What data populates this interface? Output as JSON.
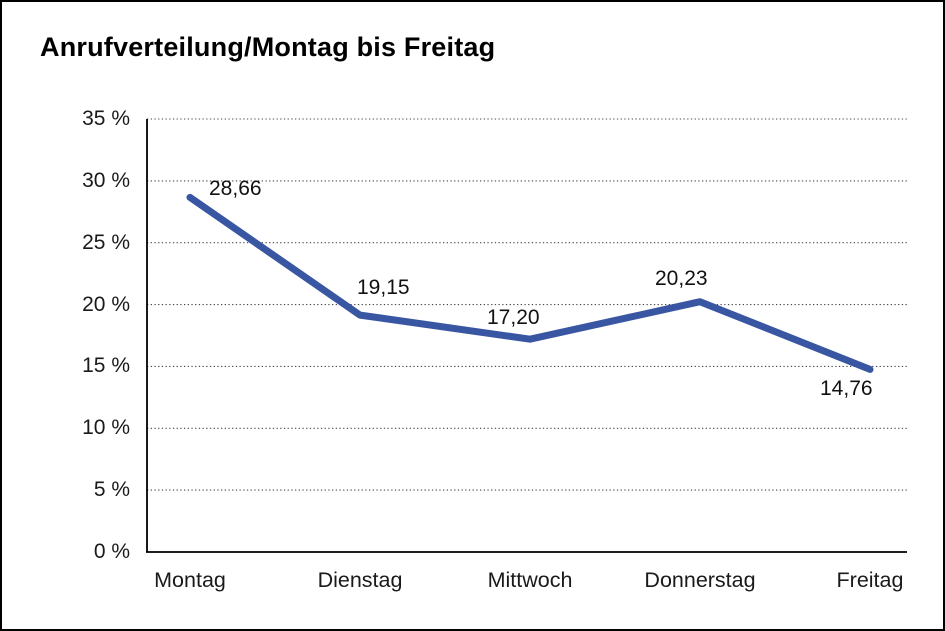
{
  "chart_data": {
    "type": "line",
    "title": "Anrufverteilung/Montag bis Freitag",
    "categories": [
      "Montag",
      "Dienstag",
      "Mittwoch",
      "Donnerstag",
      "Freitag"
    ],
    "series": [
      {
        "name": "Anrufverteilung",
        "values": [
          28.66,
          19.15,
          17.2,
          20.23,
          14.76
        ],
        "point_labels": [
          "28,66",
          "19,15",
          "17,20",
          "20,23",
          "14,76"
        ],
        "color": "#3956A2"
      }
    ],
    "ytick_labels": [
      "0 %",
      "5 %",
      "10 %",
      "15 %",
      "20 %",
      "25 %",
      "30 %",
      "35 %"
    ],
    "ytick_values": [
      0,
      5,
      10,
      15,
      20,
      25,
      30,
      35
    ],
    "ylim": [
      0,
      35
    ],
    "xlabel": "",
    "ylabel": "",
    "grid": "horizontal-dotted",
    "legend": "none"
  },
  "colors": {
    "line": "#3956A2",
    "axis": "#000000",
    "grid": "#4a4a4a",
    "text": "#1a1a1a",
    "background": "#ffffff",
    "frame_border": "#000000"
  }
}
